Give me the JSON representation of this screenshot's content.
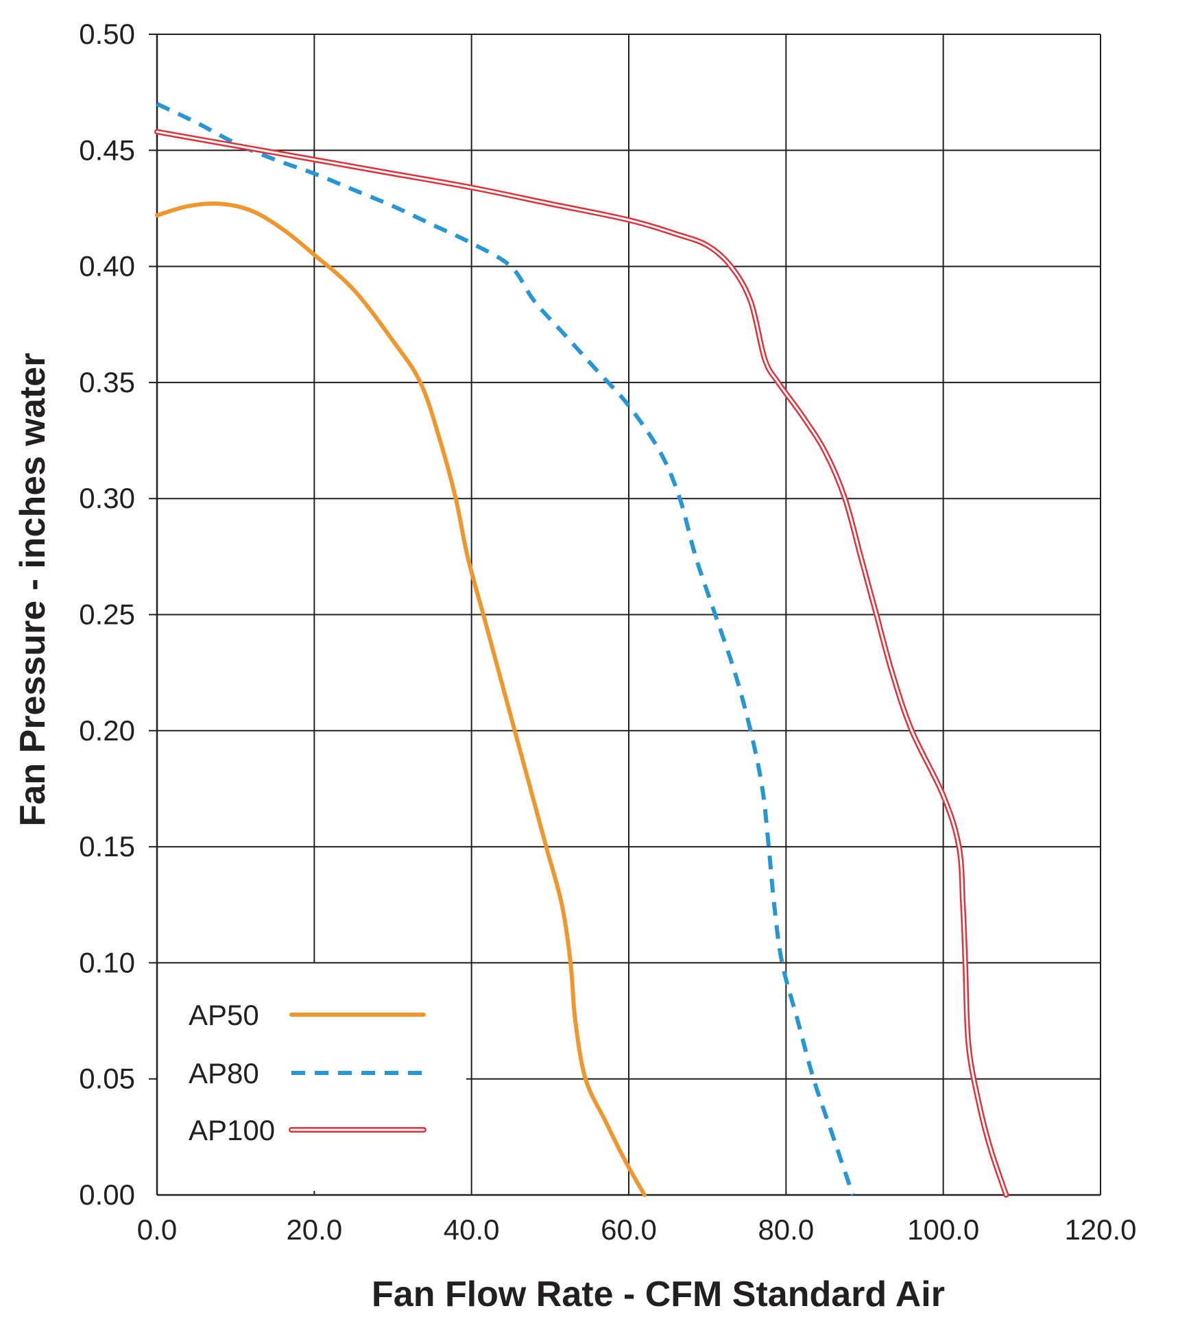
{
  "chart_data": {
    "type": "line",
    "title": "",
    "xlabel": "Fan Flow Rate - CFM Standard Air",
    "ylabel": "Fan Pressure - inches water",
    "xlim": [
      0,
      120
    ],
    "ylim": [
      0,
      0.5
    ],
    "grid": true,
    "legend_position": "bottom-left",
    "x_ticks": [
      "0.0",
      "20.0",
      "40.0",
      "60.0",
      "80.0",
      "100.0",
      "120.0"
    ],
    "y_ticks": [
      "0.00",
      "0.05",
      "0.10",
      "0.15",
      "0.20",
      "0.25",
      "0.30",
      "0.35",
      "0.40",
      "0.45",
      "0.50"
    ],
    "series": [
      {
        "name": "AP50",
        "color": "#f0962e",
        "style": "solid",
        "points": [
          [
            0,
            0.422
          ],
          [
            4,
            0.426
          ],
          [
            8,
            0.427
          ],
          [
            12,
            0.424
          ],
          [
            16,
            0.416
          ],
          [
            20,
            0.405
          ],
          [
            25,
            0.39
          ],
          [
            30,
            0.368
          ],
          [
            33.5,
            0.35
          ],
          [
            36,
            0.325
          ],
          [
            38,
            0.3
          ],
          [
            39.5,
            0.275
          ],
          [
            41.5,
            0.25
          ],
          [
            43.5,
            0.225
          ],
          [
            45.5,
            0.2
          ],
          [
            47.5,
            0.175
          ],
          [
            49.5,
            0.15
          ],
          [
            51.5,
            0.125
          ],
          [
            52.6,
            0.1
          ],
          [
            53.2,
            0.075
          ],
          [
            54.5,
            0.05
          ],
          [
            57,
            0.032
          ],
          [
            59.5,
            0.015
          ],
          [
            62,
            0.0
          ]
        ]
      },
      {
        "name": "AP80",
        "color": "#2796d4",
        "style": "dashed",
        "points": [
          [
            0,
            0.47
          ],
          [
            5,
            0.462
          ],
          [
            10,
            0.453
          ],
          [
            15,
            0.446
          ],
          [
            20,
            0.44
          ],
          [
            25,
            0.433
          ],
          [
            30,
            0.426
          ],
          [
            35,
            0.418
          ],
          [
            40,
            0.41
          ],
          [
            45,
            0.4
          ],
          [
            48,
            0.385
          ],
          [
            52,
            0.37
          ],
          [
            56,
            0.355
          ],
          [
            60,
            0.34
          ],
          [
            64,
            0.32
          ],
          [
            66.5,
            0.3
          ],
          [
            68.5,
            0.275
          ],
          [
            71,
            0.25
          ],
          [
            73.5,
            0.225
          ],
          [
            75.5,
            0.2
          ],
          [
            77,
            0.175
          ],
          [
            77.8,
            0.15
          ],
          [
            78.5,
            0.125
          ],
          [
            79.5,
            0.1
          ],
          [
            81.5,
            0.075
          ],
          [
            83.5,
            0.05
          ],
          [
            86,
            0.025
          ],
          [
            88.5,
            0.0
          ]
        ]
      },
      {
        "name": "AP100",
        "color": "#e03138",
        "style": "double",
        "points": [
          [
            0,
            0.458
          ],
          [
            10,
            0.452
          ],
          [
            20,
            0.446
          ],
          [
            30,
            0.44
          ],
          [
            40,
            0.434
          ],
          [
            50,
            0.427
          ],
          [
            60,
            0.42
          ],
          [
            66,
            0.414
          ],
          [
            70,
            0.409
          ],
          [
            73,
            0.4
          ],
          [
            75.5,
            0.385
          ],
          [
            77.3,
            0.36
          ],
          [
            79,
            0.35
          ],
          [
            82,
            0.336
          ],
          [
            85,
            0.32
          ],
          [
            87.5,
            0.3
          ],
          [
            89.5,
            0.275
          ],
          [
            91.5,
            0.25
          ],
          [
            93.5,
            0.225
          ],
          [
            96,
            0.2
          ],
          [
            100,
            0.172
          ],
          [
            102,
            0.15
          ],
          [
            102.5,
            0.125
          ],
          [
            102.8,
            0.1
          ],
          [
            103.2,
            0.065
          ],
          [
            104.5,
            0.04
          ],
          [
            106,
            0.02
          ],
          [
            108,
            0.0
          ]
        ]
      }
    ]
  }
}
